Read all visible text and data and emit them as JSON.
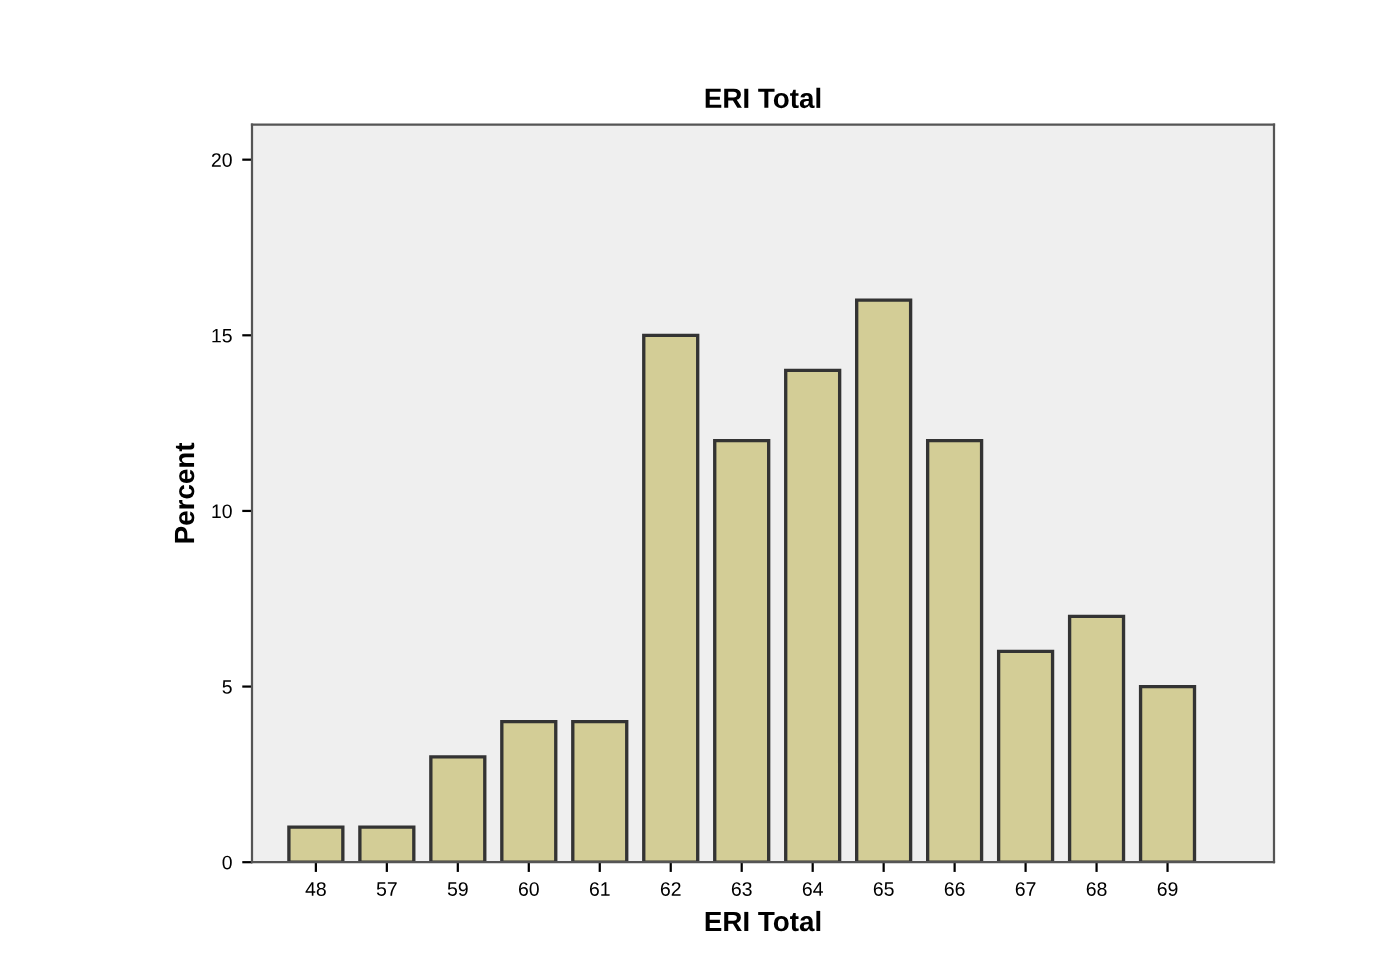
{
  "chart_data": {
    "type": "bar",
    "title": "ERI Total",
    "xlabel": "ERI Total",
    "ylabel": "Percent",
    "categories": [
      "48",
      "57",
      "59",
      "60",
      "61",
      "62",
      "63",
      "64",
      "65",
      "66",
      "67",
      "68",
      "69"
    ],
    "values": [
      1,
      1,
      3,
      4,
      4,
      15,
      12,
      14,
      16,
      12,
      6,
      7,
      5
    ],
    "color": "#d3cd96",
    "ylim": [
      0,
      21
    ],
    "yticks": [
      0,
      5,
      10,
      15,
      20
    ],
    "grid": false
  }
}
